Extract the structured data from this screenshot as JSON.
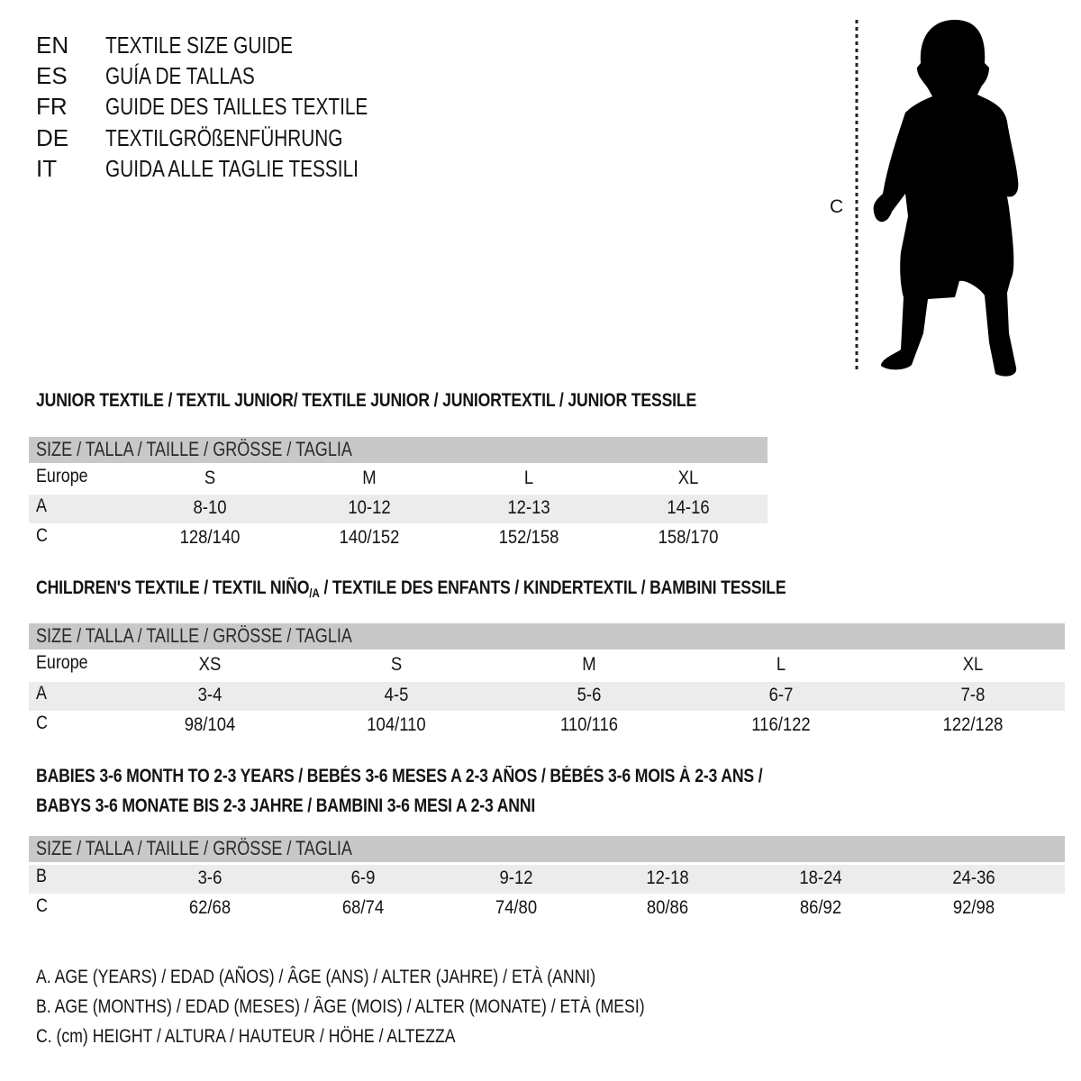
{
  "languages": [
    {
      "code": "EN",
      "title": "TEXTILE SIZE GUIDE"
    },
    {
      "code": "ES",
      "title": "GUÍA DE TALLAS"
    },
    {
      "code": "FR",
      "title": "GUIDE DES TAILLES TEXTILE"
    },
    {
      "code": "DE",
      "title": "TEXTILGRÖßENFÜHRUNG"
    },
    {
      "code": "IT",
      "title": "GUIDA ALLE TAGLIE TESSILI"
    }
  ],
  "figure": {
    "icon": "child-silhouette-icon",
    "measure_label": "C"
  },
  "junior": {
    "heading": "JUNIOR TEXTILE / TEXTIL JUNIOR/ TEXTILE JUNIOR / JUNIORTEXTIL / JUNIOR TESSILE",
    "header": "SIZE / TALLA / TAILLE / GRÖSSE / TAGLIA",
    "rows": [
      {
        "label": "Europe",
        "values": [
          "S",
          "M",
          "L",
          "XL"
        ]
      },
      {
        "label": "A",
        "values": [
          "8-10",
          "10-12",
          "12-13",
          "14-16"
        ]
      },
      {
        "label": "C",
        "values": [
          "128/140",
          "140/152",
          "152/158",
          "158/170"
        ]
      }
    ]
  },
  "children": {
    "heading_pre": "CHILDREN'S TEXTILE / TEXTIL NIÑO",
    "heading_sub": "/A",
    "heading_post": " / TEXTILE DES ENFANTS / KINDERTEXTIL / BAMBINI TESSILE",
    "header": "SIZE / TALLA / TAILLE / GRÖSSE / TAGLIA",
    "rows": [
      {
        "label": "Europe",
        "values": [
          "XS",
          "S",
          "M",
          "L",
          "XL"
        ]
      },
      {
        "label": "A",
        "values": [
          "3-4",
          "4-5",
          "5-6",
          "6-7",
          "7-8"
        ]
      },
      {
        "label": "C",
        "values": [
          "98/104",
          "104/110",
          "110/116",
          "116/122",
          "122/128"
        ]
      }
    ]
  },
  "babies": {
    "heading_line1": "BABIES 3-6 MONTH TO 2-3 YEARS / BEBÉS 3-6 MESES A 2-3 AÑOS / BÉBÉS 3-6 MOIS À 2-3 ANS /",
    "heading_line2": "BABYS 3-6 MONATE BIS 2-3 JAHRE / BAMBINI 3-6 MESI A 2-3 ANNI",
    "header": "SIZE / TALLA / TAILLE / GRÖSSE / TAGLIA",
    "rows": [
      {
        "label": "B",
        "values": [
          "3-6",
          "6-9",
          "9-12",
          "12-18",
          "18-24",
          "24-36"
        ]
      },
      {
        "label": "C",
        "values": [
          "62/68",
          "68/74",
          "74/80",
          "80/86",
          "86/92",
          "92/98"
        ]
      }
    ]
  },
  "legend": [
    "A. AGE (YEARS) / EDAD (AÑOS) / ÂGE (ANS) / ALTER (JAHRE) / ETÀ (ANNI)",
    "B. AGE (MONTHS) / EDAD (MESES) / ÂGE (MOIS) / ALTER (MONATE) / ETÀ (MESI)",
    "C. (cm) HEIGHT / ALTURA / HAUTEUR / HÖHE / ALTEZZA"
  ],
  "colors": {
    "header_bar": "#c8c8c8",
    "alt_row": "#ececec",
    "text": "#141414"
  }
}
